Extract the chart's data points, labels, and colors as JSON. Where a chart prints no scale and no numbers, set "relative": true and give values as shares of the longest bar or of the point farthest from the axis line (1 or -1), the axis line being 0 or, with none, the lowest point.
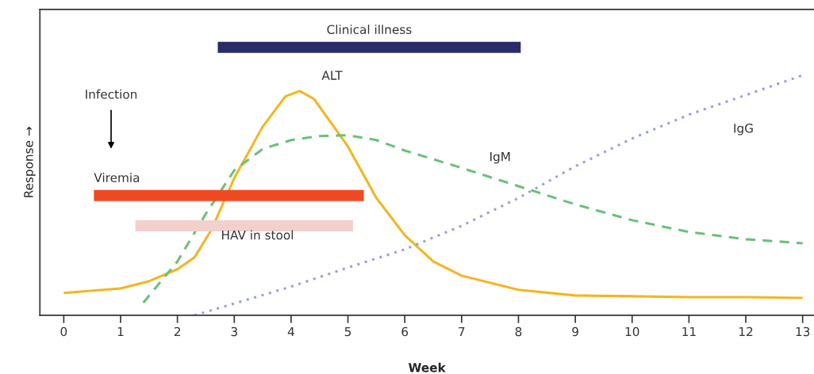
{
  "chart_data": {
    "type": "line",
    "relative": true,
    "xlabel": "Week",
    "ylabel": "Response →",
    "xlim": [
      -0.42,
      13.2
    ],
    "xticks": [
      0,
      1,
      2,
      3,
      4,
      5,
      6,
      7,
      8,
      9,
      10,
      11,
      12,
      13
    ],
    "grid": false,
    "legend": false,
    "annotations": [
      "Infection"
    ],
    "series": [
      {
        "name": "ALT",
        "color": "#f5b520",
        "line_style": "solid",
        "x": [
          0,
          1,
          1.5,
          2,
          2.3,
          2.6,
          3,
          3.5,
          3.9,
          4.15,
          4.4,
          5,
          5.5,
          6,
          6.5,
          7,
          8,
          9,
          10,
          11,
          12,
          13
        ],
        "values": [
          0.083,
          0.1,
          0.127,
          0.172,
          0.216,
          0.32,
          0.512,
          0.704,
          0.817,
          0.837,
          0.808,
          0.63,
          0.438,
          0.299,
          0.201,
          0.148,
          0.095,
          0.074,
          0.071,
          0.068,
          0.068,
          0.065
        ]
      },
      {
        "name": "IgM",
        "color": "#6cc07a",
        "line_style": "dashed",
        "x": [
          1.4,
          2,
          2.5,
          3,
          3.5,
          4,
          4.5,
          5,
          5.5,
          6,
          7,
          8,
          9,
          10,
          11,
          12,
          13
        ],
        "values": [
          0.047,
          0.201,
          0.379,
          0.541,
          0.621,
          0.654,
          0.669,
          0.672,
          0.654,
          0.615,
          0.55,
          0.482,
          0.414,
          0.355,
          0.311,
          0.284,
          0.269
        ]
      },
      {
        "name": "IgG",
        "color": "#9aa0d8",
        "line_style": "dotted",
        "x": [
          2.3,
          3,
          4,
          5,
          6,
          7,
          8,
          9,
          10,
          11,
          12,
          13
        ],
        "values": [
          0,
          0.044,
          0.107,
          0.178,
          0.246,
          0.334,
          0.438,
          0.556,
          0.66,
          0.749,
          0.822,
          0.896
        ]
      },
      {
        "name": "Clinical illness",
        "color": "#2b2a6b",
        "line_style": "solid",
        "x": [
          2.71,
          8.04
        ],
        "values": [
          1,
          1
        ]
      },
      {
        "name": "Viremia",
        "color": "#f04a23",
        "line_style": "solid",
        "x": [
          0.53,
          5.28
        ],
        "values": [
          0.447,
          0.447
        ]
      },
      {
        "name": "HAV in stool",
        "color": "#f2d0cc",
        "line_style": "solid",
        "x": [
          1.26,
          5.09
        ],
        "values": [
          0.334,
          0.334
        ]
      }
    ]
  }
}
